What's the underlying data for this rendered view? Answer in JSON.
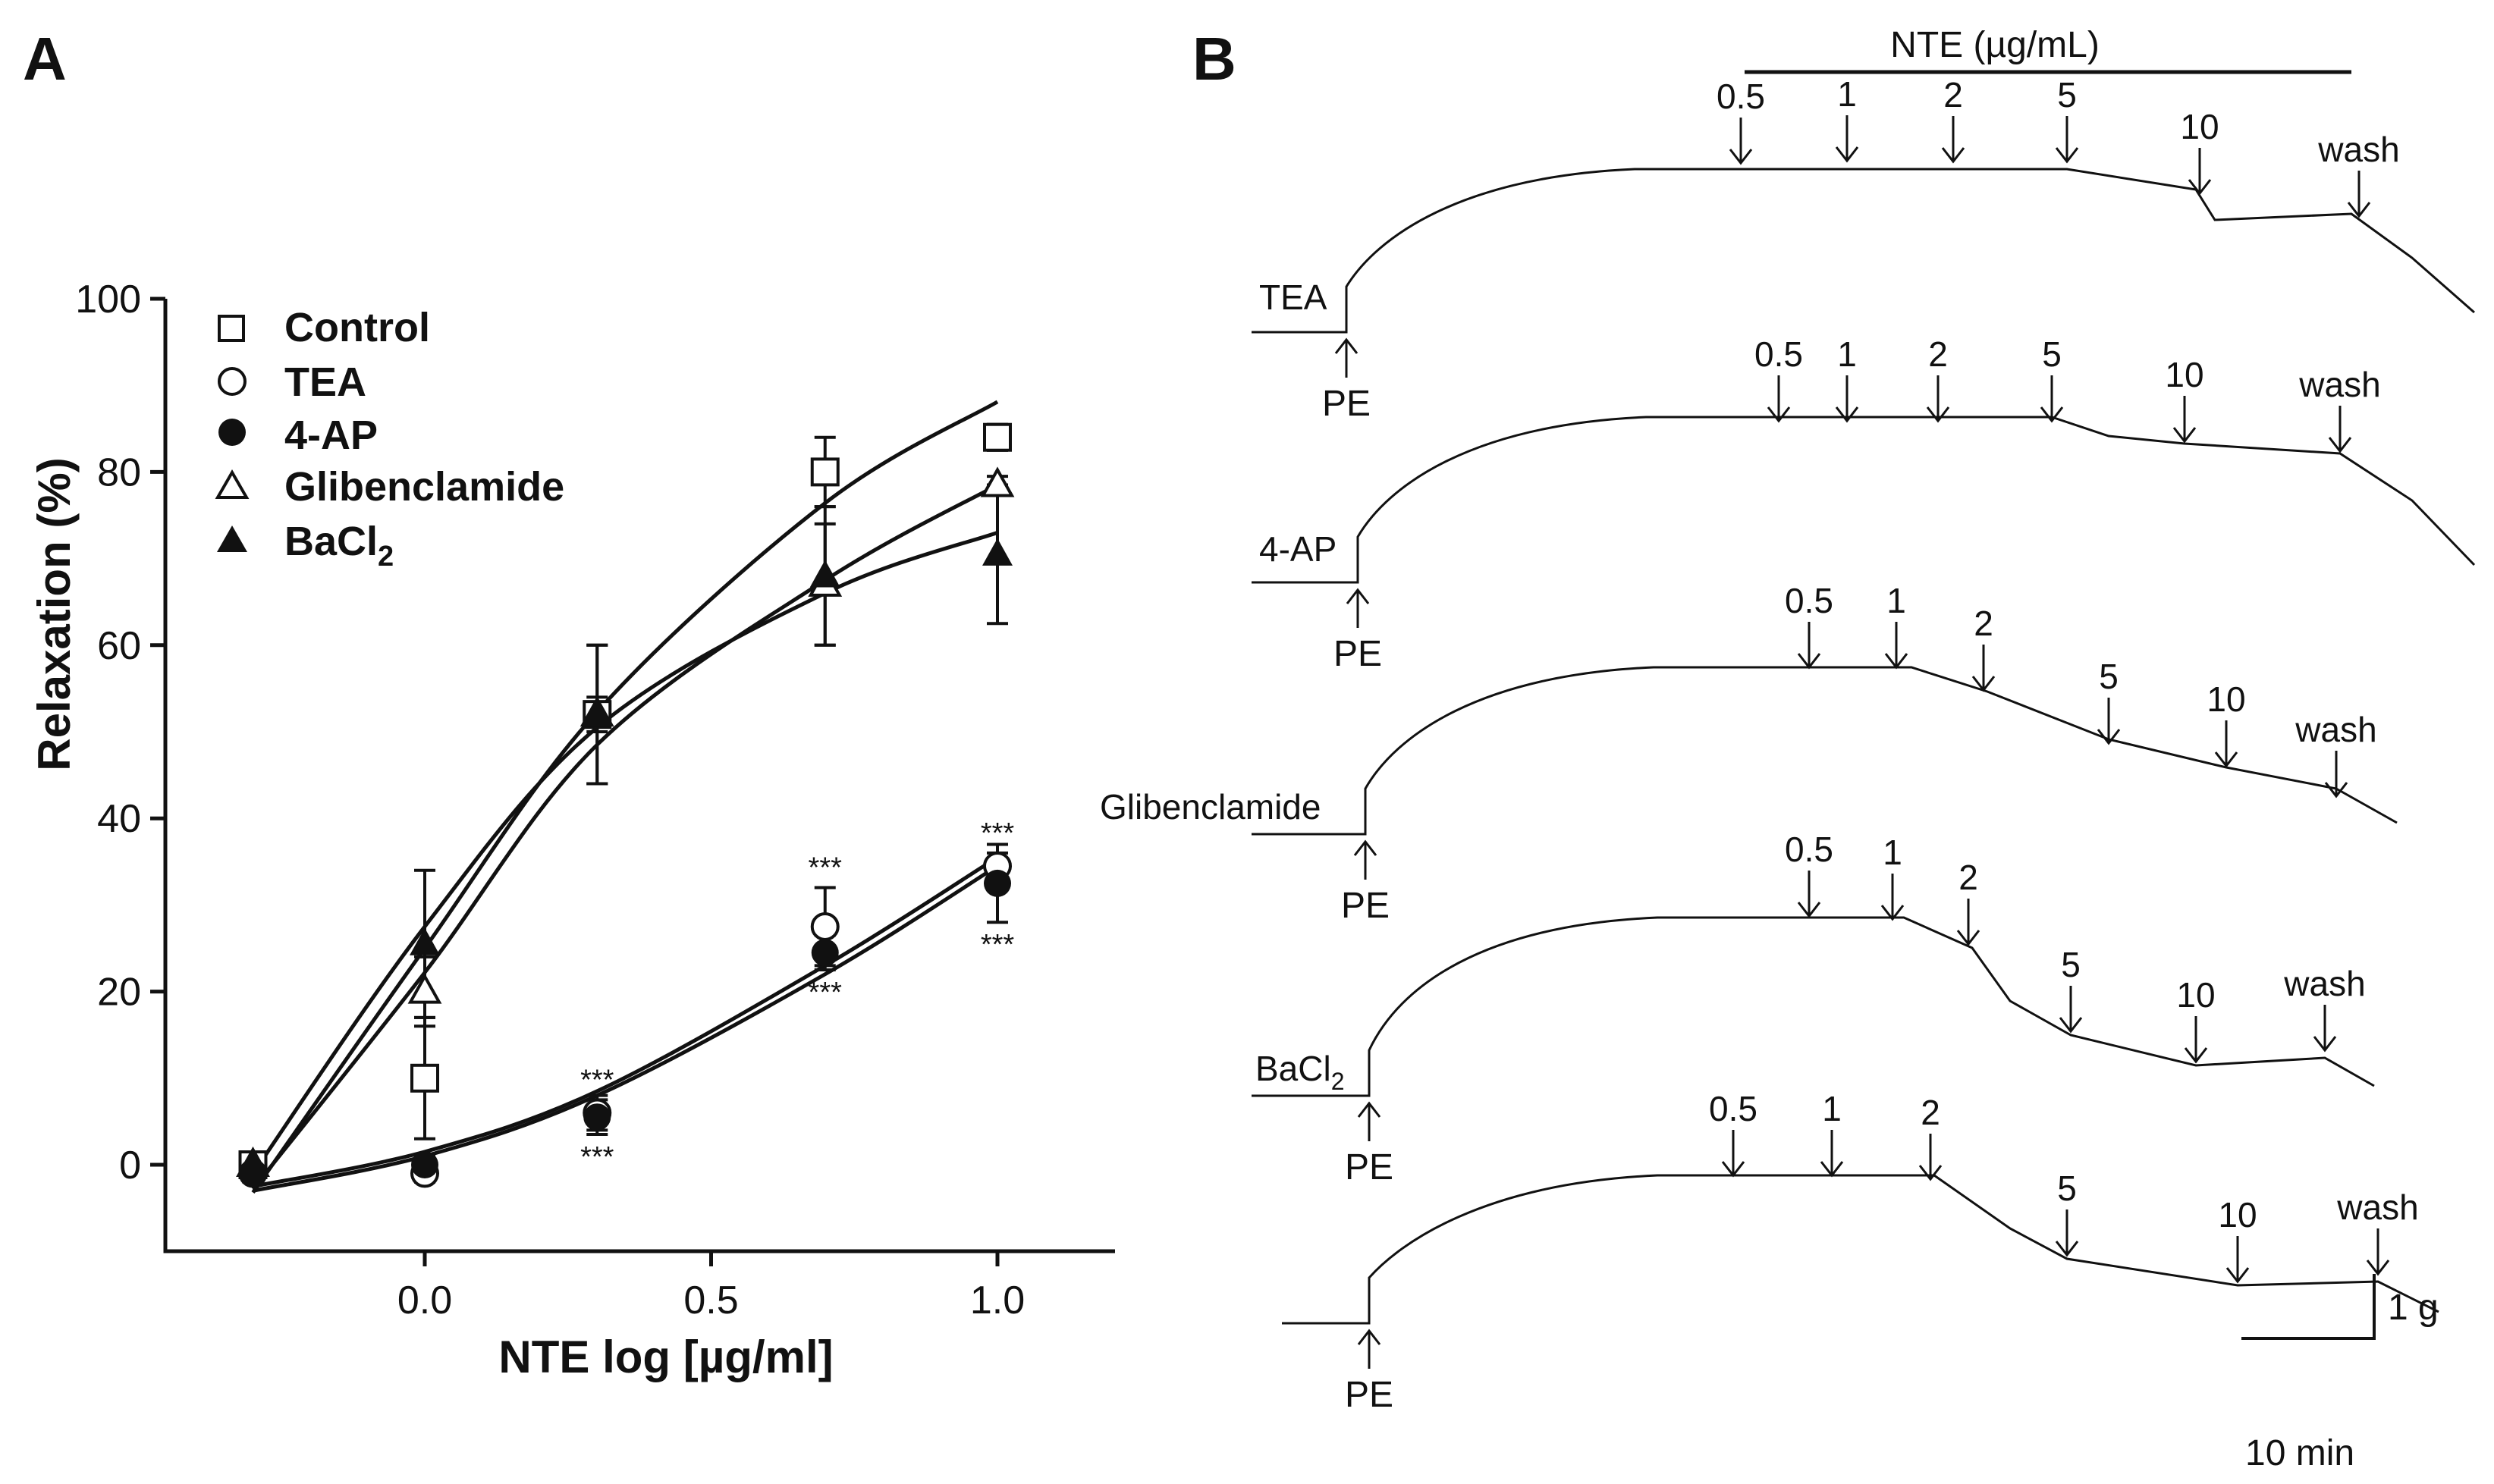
{
  "panel_a": {
    "label": "A",
    "chart_data": {
      "type": "scatter",
      "xlabel": "NTE log [µg/ml]",
      "ylabel": "Relaxation (%)",
      "xlim": [
        -0.4,
        1.2
      ],
      "ylim": [
        -10,
        100
      ],
      "xticks": [
        0.0,
        0.5,
        1.0
      ],
      "xtick_labels": [
        "0.0",
        "0.5",
        "1.0"
      ],
      "yticks": [
        0,
        20,
        40,
        60,
        80,
        100
      ],
      "ytick_labels": [
        "0",
        "20",
        "40",
        "60",
        "80",
        "100"
      ],
      "x": [
        -0.3,
        0.0,
        0.301,
        0.699,
        1.0
      ],
      "legend_position": "top-left",
      "significance_marker": "***",
      "series": [
        {
          "name": "Control",
          "marker": "open-square",
          "values": [
            0,
            10,
            52,
            80,
            84
          ],
          "errors": [
            1,
            7,
            2,
            4,
            1.5
          ],
          "fit": [
            -3.2,
            25.0,
            52.3,
            76.4,
            88.1
          ]
        },
        {
          "name": "TEA",
          "marker": "open-circle",
          "values": [
            -1,
            -1,
            6,
            27.5,
            34.5
          ],
          "errors": [
            1,
            1,
            2,
            4.5,
            1.5
          ],
          "fit": [
            -2.5,
            1.5,
            8.5,
            23.0,
            35.5
          ],
          "stars_above": [
            0,
            0,
            0,
            1,
            1
          ]
        },
        {
          "name": "4-AP",
          "marker": "filled-circle",
          "values": [
            -1,
            0,
            5.5,
            24.5,
            32.5
          ],
          "errors": [
            1,
            1,
            2,
            2,
            4.5
          ],
          "fit": [
            -3.0,
            1.0,
            8.0,
            22.0,
            34.5
          ],
          "stars_below": [
            0,
            0,
            1,
            1,
            1
          ],
          "stars_above": [
            0,
            0,
            1,
            0,
            0
          ]
        },
        {
          "name": "Glibenclamide",
          "marker": "open-triangle",
          "values": [
            0,
            20,
            52,
            67,
            78.5
          ],
          "errors": [
            1,
            4,
            8,
            7,
            1
          ],
          "fit": [
            -2.8,
            22.2,
            48.5,
            67.5,
            78.5
          ]
        },
        {
          "name": "BaCl2",
          "marker": "filled-triangle",
          "values": [
            0,
            25.5,
            52,
            68,
            70.5
          ],
          "errors": [
            1,
            8.5,
            8,
            8,
            8
          ],
          "fit": [
            -1.0,
            27.5,
            50.5,
            66.0,
            73.0
          ]
        }
      ],
      "legend": [
        "Control",
        "TEA",
        "4-AP",
        "Glibenclamide",
        "BaCl"
      ],
      "legend_subscript": "2"
    }
  },
  "panel_b": {
    "label": "B",
    "bar_label": "NTE (µg/mL)",
    "pe_label": "PE",
    "wash_label": "wash",
    "scale_bar": {
      "vertical": "1 g",
      "horizontal": "10 min"
    },
    "traces": [
      {
        "name": "TEA",
        "concentrations": [
          "0.5",
          "1",
          "2",
          "5",
          "10"
        ]
      },
      {
        "name": "4-AP",
        "concentrations": [
          "0.5",
          "1",
          "2",
          "5",
          "10"
        ]
      },
      {
        "name": "Glibenclamide",
        "concentrations": [
          "0.5",
          "1",
          "2",
          "5",
          "10"
        ]
      },
      {
        "name": "BaCl",
        "subscript": "2",
        "concentrations": [
          "0.5",
          "1",
          "2",
          "5",
          "10"
        ]
      },
      {
        "name": "",
        "concentrations": [
          "0.5",
          "1",
          "2",
          "5",
          "10"
        ]
      }
    ]
  }
}
